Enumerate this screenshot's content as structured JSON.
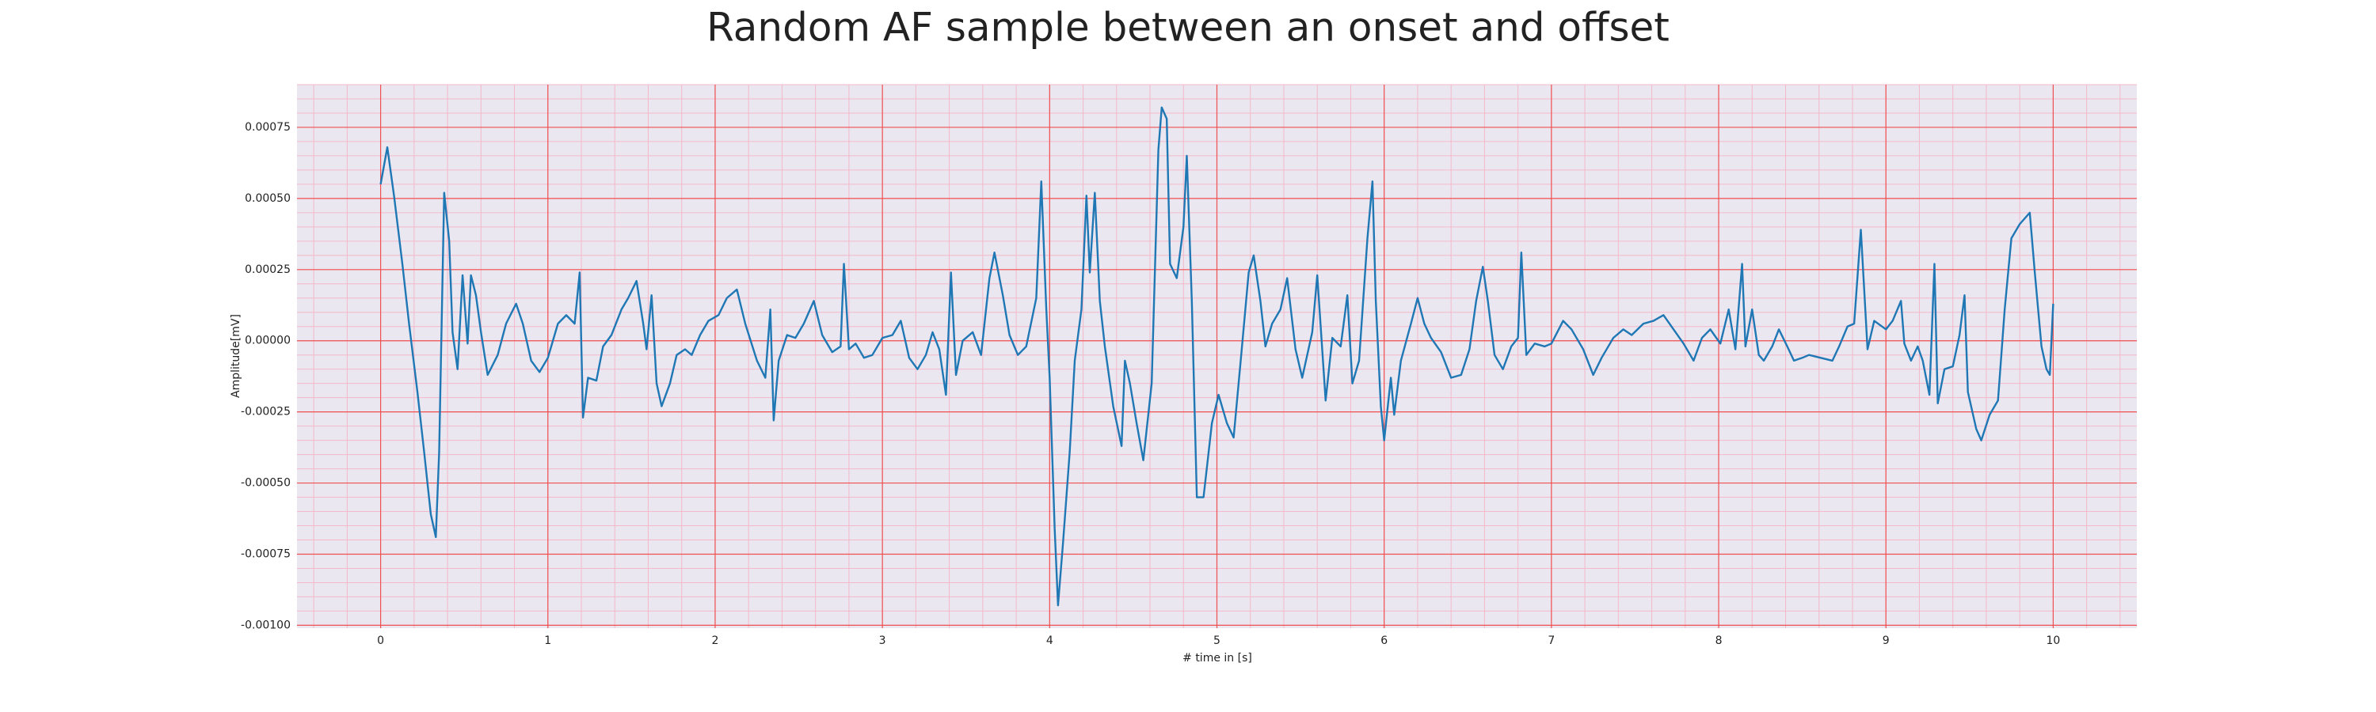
{
  "chart_data": {
    "type": "line",
    "title": "Random AF sample between an onset and offset",
    "x_label": "# time in [s]",
    "y_label": "Amplitude[mV]",
    "xlim": [
      -0.5,
      10.5
    ],
    "ylim": [
      -0.00101,
      0.0009
    ],
    "xticks": [
      0,
      1,
      2,
      3,
      4,
      5,
      6,
      7,
      8,
      9,
      10
    ],
    "yticks": [
      0.00075,
      {
        "value": 0.0005,
        "label": "0.00050"
      },
      0.00025,
      {
        "value": 0,
        "label": "0.00000"
      },
      -0.00025,
      {
        "value": -0.0005,
        "label": "-0.00050"
      },
      -0.00075,
      {
        "value": -0.001,
        "label": "-0.00100"
      }
    ],
    "grid": true,
    "minor_grid": true,
    "grid_color": "#f05050",
    "minor_grid_color": "#f4b8c8",
    "background": "#eae7f1",
    "series": [
      {
        "color": "#1f77b4",
        "x": [
          0,
          0.04,
          0.08,
          0.13,
          0.17,
          0.22,
          0.26,
          0.3,
          0.33,
          0.35,
          0.38,
          0.41,
          0.43,
          0.46,
          0.49,
          0.52,
          0.54,
          0.57,
          0.6,
          0.64,
          0.7,
          0.75,
          0.81,
          0.85,
          0.9,
          0.95,
          1.0,
          1.06,
          1.11,
          1.16,
          1.19,
          1.21,
          1.24,
          1.29,
          1.33,
          1.38,
          1.44,
          1.48,
          1.53,
          1.57,
          1.59,
          1.62,
          1.65,
          1.68,
          1.73,
          1.77,
          1.82,
          1.86,
          1.91,
          1.96,
          2.02,
          2.07,
          2.13,
          2.18,
          2.25,
          2.3,
          2.33,
          2.35,
          2.38,
          2.43,
          2.48,
          2.53,
          2.59,
          2.64,
          2.7,
          2.75,
          2.77,
          2.8,
          2.84,
          2.89,
          2.94,
          3.0,
          3.06,
          3.11,
          3.16,
          3.21,
          3.26,
          3.3,
          3.34,
          3.38,
          3.41,
          3.44,
          3.48,
          3.54,
          3.59,
          3.64,
          3.67,
          3.72,
          3.76,
          3.81,
          3.86,
          3.92,
          3.95,
          3.98,
          4.0,
          4.03,
          4.05,
          4.08,
          4.12,
          4.15,
          4.19,
          4.22,
          4.24,
          4.27,
          4.3,
          4.33,
          4.38,
          4.43,
          4.45,
          4.48,
          4.52,
          4.56,
          4.61,
          4.65,
          4.67,
          4.7,
          4.72,
          4.76,
          4.8,
          4.82,
          4.85,
          4.88,
          4.92,
          4.97,
          5.01,
          5.06,
          5.1,
          5.15,
          5.19,
          5.22,
          5.26,
          5.29,
          5.33,
          5.38,
          5.42,
          5.47,
          5.51,
          5.57,
          5.6,
          5.65,
          5.69,
          5.74,
          5.78,
          5.81,
          5.85,
          5.9,
          5.93,
          5.95,
          5.98,
          6.0,
          6.04,
          6.06,
          6.1,
          6.16,
          6.2,
          6.24,
          6.28,
          6.34,
          6.4,
          6.46,
          6.51,
          6.55,
          6.59,
          6.62,
          6.66,
          6.71,
          6.76,
          6.8,
          6.82,
          6.85,
          6.9,
          6.96,
          7.0,
          7.07,
          7.12,
          7.19,
          7.25,
          7.3,
          7.37,
          7.43,
          7.48,
          7.55,
          7.61,
          7.67,
          7.73,
          7.79,
          7.85,
          7.9,
          7.95,
          8.01,
          8.06,
          8.1,
          8.14,
          8.16,
          8.2,
          8.24,
          8.27,
          8.32,
          8.36,
          8.41,
          8.45,
          8.5,
          8.54,
          8.61,
          8.68,
          8.72,
          8.77,
          8.81,
          8.85,
          8.89,
          8.93,
          9.0,
          9.04,
          9.09,
          9.11,
          9.15,
          9.19,
          9.22,
          9.26,
          9.29,
          9.31,
          9.35,
          9.4,
          9.44,
          9.47,
          9.49,
          9.54,
          9.57,
          9.62,
          9.67,
          9.71,
          9.75,
          9.8,
          9.86,
          9.89,
          9.93,
          9.96,
          9.98,
          10.0
        ],
        "values": [
          0.00055,
          0.00068,
          0.00051,
          0.00027,
          6e-05,
          -0.00018,
          -0.00039,
          -0.00061,
          -0.00069,
          -0.00039,
          0.00052,
          0.00035,
          3e-05,
          -0.0001,
          0.00023,
          -1e-05,
          0.00023,
          0.00016,
          3e-05,
          -0.00012,
          -5e-05,
          6e-05,
          0.00013,
          6e-05,
          -7e-05,
          -0.00011,
          -6e-05,
          6e-05,
          9e-05,
          6e-05,
          0.00024,
          -0.00027,
          -0.00013,
          -0.00014,
          -2e-05,
          2e-05,
          0.00011,
          0.00015,
          0.00021,
          6e-05,
          -3e-05,
          0.00016,
          -0.00015,
          -0.00023,
          -0.00015,
          -5e-05,
          -3e-05,
          -5e-05,
          2e-05,
          7e-05,
          9e-05,
          0.00015,
          0.00018,
          6e-05,
          -7e-05,
          -0.00013,
          0.00011,
          -0.00028,
          -7e-05,
          2e-05,
          1e-05,
          6e-05,
          0.00014,
          2e-05,
          -4e-05,
          -2e-05,
          0.00027,
          -3e-05,
          -1e-05,
          -6e-05,
          -5e-05,
          1e-05,
          2e-05,
          7e-05,
          -6e-05,
          -0.0001,
          -5e-05,
          3e-05,
          -3e-05,
          -0.00019,
          0.00024,
          -0.00012,
          0,
          3e-05,
          -5e-05,
          0.00022,
          0.00031,
          0.00016,
          2e-05,
          -5e-05,
          -2e-05,
          0.00015,
          0.00056,
          0.00011,
          -0.00013,
          -0.00066,
          -0.00093,
          -0.00071,
          -0.00039,
          -7e-05,
          0.00011,
          0.00051,
          0.00024,
          0.00052,
          0.00014,
          -2e-05,
          -0.00023,
          -0.00037,
          -7e-05,
          -0.00015,
          -0.00029,
          -0.00042,
          -0.00015,
          0.00067,
          0.00082,
          0.00078,
          0.00027,
          0.00022,
          0.0004,
          0.00065,
          0.00014,
          -0.00055,
          -0.00055,
          -0.00029,
          -0.00019,
          -0.00029,
          -0.00034,
          -2e-05,
          0.00024,
          0.0003,
          0.00014,
          -2e-05,
          6e-05,
          0.00011,
          0.00022,
          -3e-05,
          -0.00013,
          3e-05,
          0.00023,
          -0.00021,
          1e-05,
          -2e-05,
          0.00016,
          -0.00015,
          -7e-05,
          0.00036,
          0.00056,
          0.00014,
          -0.00023,
          -0.00035,
          -0.00013,
          -0.00026,
          -7e-05,
          6e-05,
          0.00015,
          6e-05,
          1e-05,
          -4e-05,
          -0.00013,
          -0.00012,
          -3e-05,
          0.00014,
          0.00026,
          0.00014,
          -5e-05,
          -0.0001,
          -2e-05,
          1e-05,
          0.00031,
          -5e-05,
          -1e-05,
          -2e-05,
          -1e-05,
          7e-05,
          4e-05,
          -3e-05,
          -0.00012,
          -6e-05,
          1e-05,
          4e-05,
          2e-05,
          6e-05,
          7e-05,
          9e-05,
          4e-05,
          -1e-05,
          -7e-05,
          1e-05,
          4e-05,
          -1e-05,
          0.00011,
          -3e-05,
          0.00027,
          -2e-05,
          0.00011,
          -5e-05,
          -7e-05,
          -2e-05,
          4e-05,
          -2e-05,
          -7e-05,
          -6e-05,
          -5e-05,
          -6e-05,
          -7e-05,
          -2e-05,
          5e-05,
          6e-05,
          0.00039,
          -3e-05,
          7e-05,
          4e-05,
          7e-05,
          0.00014,
          -1e-05,
          -7e-05,
          -2e-05,
          -7e-05,
          -0.00019,
          0.00027,
          -0.00022,
          -0.0001,
          -9e-05,
          2e-05,
          0.00016,
          -0.00018,
          -0.00031,
          -0.00035,
          -0.00026,
          -0.00021,
          0.00011,
          0.00036,
          0.00041,
          0.00045,
          0.00024,
          -2e-05,
          -0.0001,
          -0.00012,
          0.00013
        ]
      }
    ]
  }
}
